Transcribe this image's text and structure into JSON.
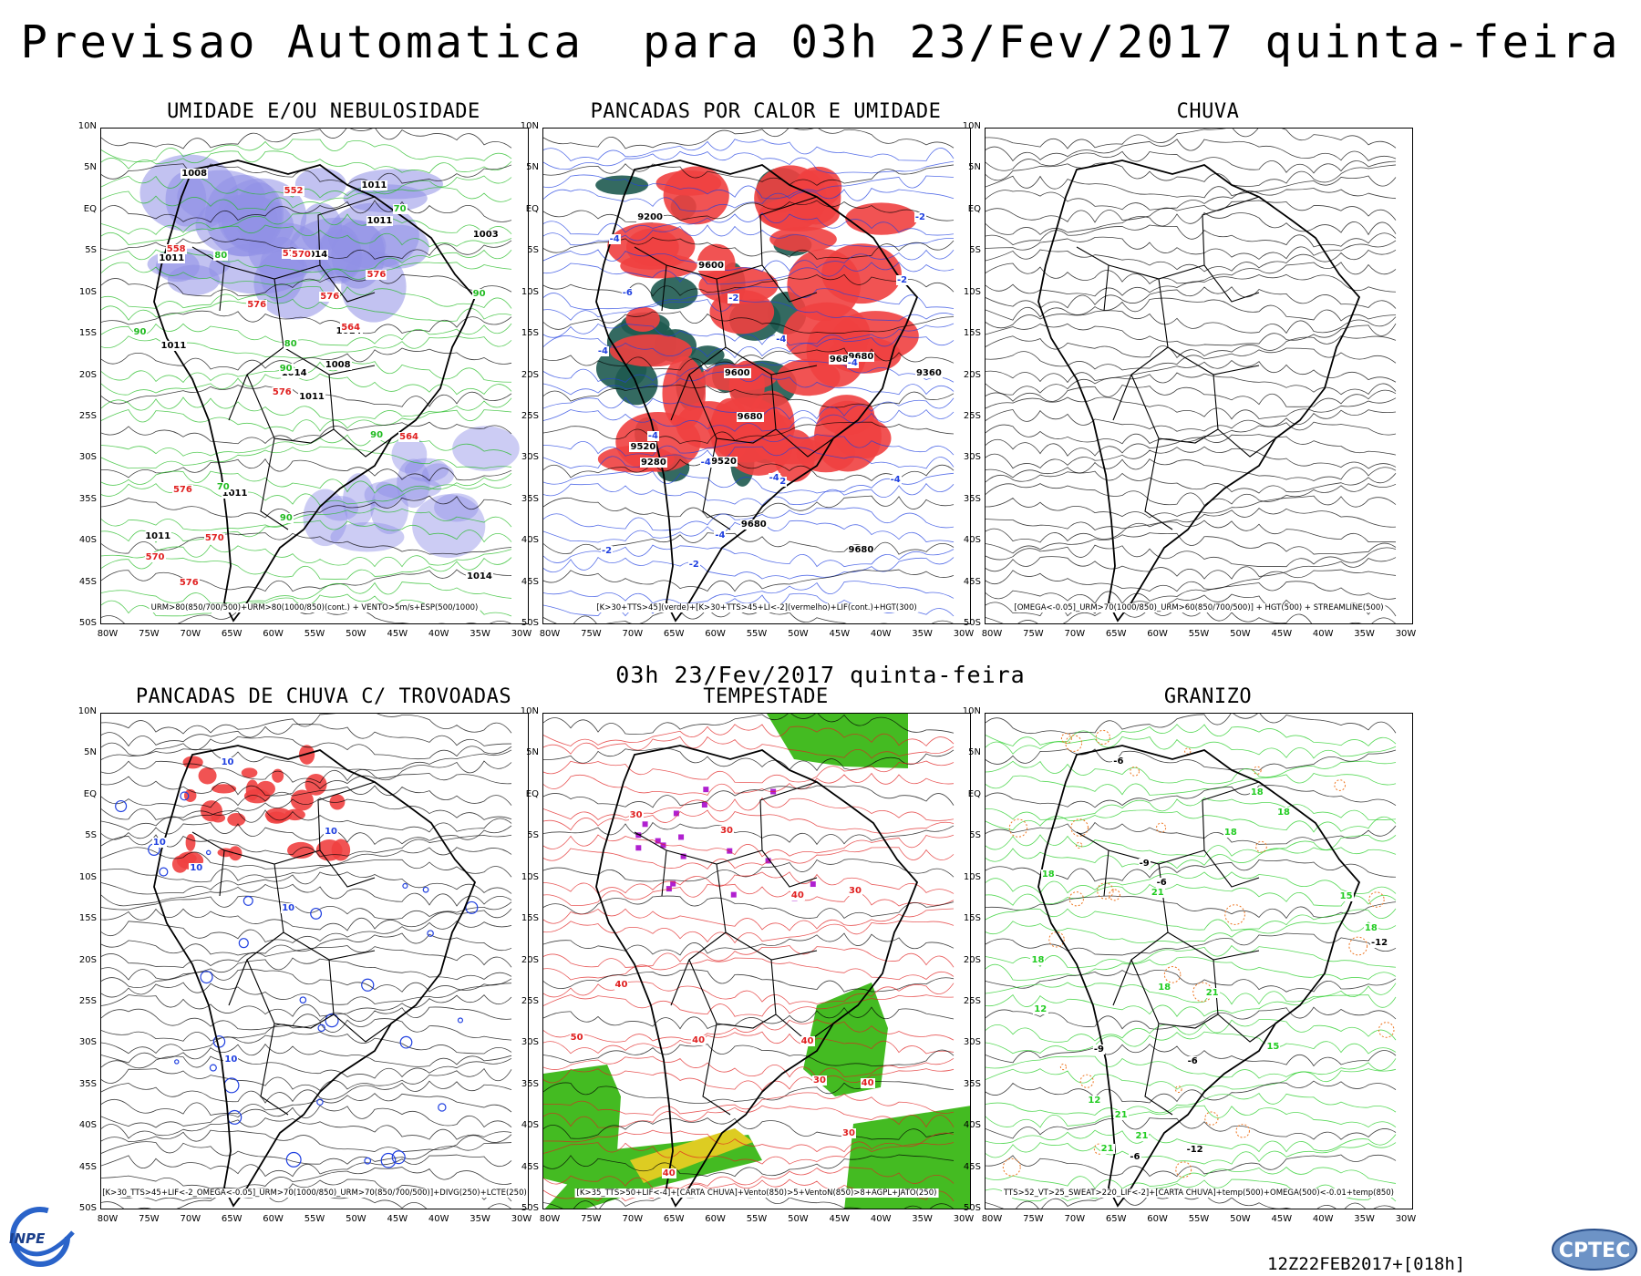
{
  "main_title": "Previsao Automatica  para 03h 23/Fev/2017 quinta-feira",
  "mid_title": "03h 23/Fev/2017 quinta-feira",
  "latitudes": [
    "10N",
    "5N",
    "EQ",
    "5S",
    "10S",
    "15S",
    "20S",
    "25S",
    "30S",
    "35S",
    "40S",
    "45S",
    "50S"
  ],
  "longitudes": [
    "80W",
    "75W",
    "70W",
    "65W",
    "60W",
    "55W",
    "50W",
    "45W",
    "40W",
    "35W",
    "30W"
  ],
  "panels": [
    {
      "id": "umidade",
      "title": "UMIDADE E/OU NEBULOSIDADE",
      "caption": "URM>80(850/700/500)+URM>80(1000/850)(cont.) + VENTO>5m/s+ESP(500/1000)",
      "labels": [
        "1011",
        "1011",
        "1014",
        "1011",
        "1014",
        "1011",
        "1011",
        "1014",
        "1011",
        "1008",
        "1008",
        "1014",
        "1011",
        "1003",
        "576",
        "576",
        "576",
        "576",
        "576",
        "576",
        "576",
        "570",
        "570",
        "570",
        "564",
        "564",
        "558",
        "552",
        "90",
        "90",
        "90",
        "90",
        "90",
        "80",
        "80",
        "70",
        "70"
      ],
      "colors": {
        "cloud": "#8f8fe6",
        "contour": "#22bb22",
        "thickness": "#e02020"
      }
    },
    {
      "id": "pancadas-calor",
      "title": "PANCADAS POR CALOR E UMIDADE",
      "caption": "[K>30+TTS>45](verde)+[K>30+TTS>45+LI<-2](vermelho)+LIF(cont.)+HGT(300)",
      "labels": [
        "9680",
        "9680",
        "9680",
        "9680",
        "9680",
        "9600",
        "9600",
        "9520",
        "9520",
        "9360",
        "9280",
        "9200",
        "-2",
        "-2",
        "-2",
        "-2",
        "-2",
        "-2",
        "-4",
        "-4",
        "-4",
        "-4",
        "-4",
        "-4",
        "-4",
        "-4",
        "-4",
        "-6"
      ],
      "colors": {
        "red": "#f04040",
        "green": "#1e5a50",
        "lif": "#2040e0"
      }
    },
    {
      "id": "chuva",
      "title": "CHUVA",
      "caption": "[OMEGA<-0.05]_URM>70(1000/850)_URM>60(850/700/500)] + HGT(500) + STREAMLINE(500)",
      "labels": [],
      "colors": {
        "stream": "#000000"
      }
    },
    {
      "id": "pancadas-trovoadas",
      "title": "PANCADAS DE CHUVA C/ TROVOADAS",
      "caption": "[K>30_TTS>45+LIF<-2_OMEGA<-0.05]_URM>70(1000/850)_URM>70(850/700/500)]+DIVG(250)+LCTE(250)",
      "labels": [
        "10",
        "10",
        "10",
        "10",
        "10",
        "10"
      ],
      "colors": {
        "red": "#f04040",
        "blue": "#2040e0"
      }
    },
    {
      "id": "tempestade",
      "title": "TEMPESTADE",
      "caption": "[K>35_TTS>50+LIF<-4]+[CARTA CHUVA]+Vento(850)>5+VentoN(850)>8+AGPL+JATO(250)",
      "labels": [
        "30",
        "30",
        "30",
        "30",
        "30",
        "40",
        "40",
        "40",
        "40",
        "40",
        "40",
        "50"
      ],
      "colors": {
        "green": "#44bb22",
        "yellow": "#ddcc22",
        "purple": "#b020d0",
        "red": "#e02020"
      }
    },
    {
      "id": "granizo",
      "title": "GRANIZO",
      "caption": "TTS>52_VT>25_SWEAT>220_LIF<-2]+[CARTA CHUVA]+temp(500)+OMEGA(500)<-0.01+temp(850)",
      "labels": [
        "18",
        "18",
        "18",
        "18",
        "18",
        "18",
        "18",
        "18",
        "21",
        "21",
        "21",
        "21",
        "21",
        "15",
        "15",
        "12",
        "12",
        "-6",
        "-6",
        "-6",
        "-6",
        "-9",
        "-9",
        "-12",
        "-12"
      ],
      "colors": {
        "green": "#22cc22",
        "orange": "#ee7722",
        "black": "#000000"
      }
    }
  ],
  "footer_run": "12Z22FEB2017+[018h]",
  "logo_left": "INPE",
  "logo_right": "CPTEC"
}
